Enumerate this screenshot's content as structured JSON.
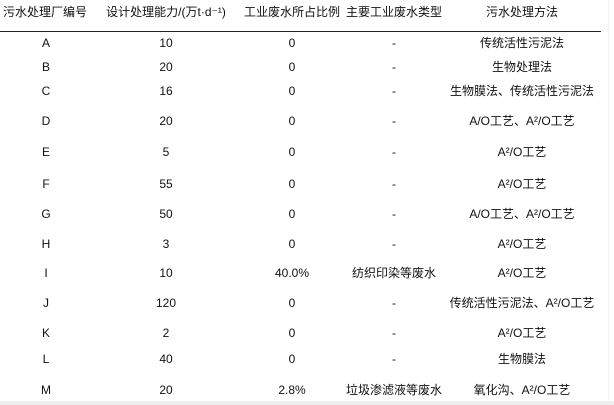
{
  "table": {
    "headers": [
      "污水处理厂编号",
      "设计处理能力/(万t·d⁻¹)",
      "工业废水所占比例",
      "主要工业废水类型",
      "污水处理方法"
    ],
    "rows": [
      [
        "A",
        "10",
        "0",
        "-",
        "传统活性污泥法"
      ],
      [
        "B",
        "20",
        "0",
        "-",
        "生物处理法"
      ],
      [
        "C",
        "16",
        "0",
        "-",
        "生物膜法、传统活性污泥法"
      ],
      [
        "D",
        "20",
        "0",
        "-",
        "A/O工艺、A²/O工艺"
      ],
      [
        "E",
        "5",
        "0",
        "-",
        "A²/O工艺"
      ],
      [
        "F",
        "55",
        "0",
        "-",
        "A²/O工艺"
      ],
      [
        "G",
        "50",
        "0",
        "-",
        "A/O工艺、A²/O工艺"
      ],
      [
        "H",
        "3",
        "0",
        "-",
        "A²/O工艺"
      ],
      [
        "I",
        "10",
        "40.0%",
        "纺织印染等废水",
        "A²/O工艺"
      ],
      [
        "J",
        "120",
        "0",
        "-",
        "传统活性污泥法、A²/O工艺"
      ],
      [
        "K",
        "2",
        "0",
        "-",
        "A²/O工艺"
      ],
      [
        "L",
        "40",
        "0",
        "-",
        "生物膜法"
      ],
      [
        "M",
        "20",
        "2.8%",
        "垃圾渗滤液等废水",
        "氧化沟、A²/O工艺"
      ]
    ]
  }
}
